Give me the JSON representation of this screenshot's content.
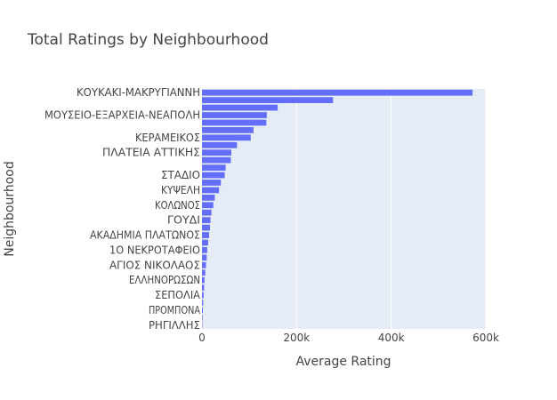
{
  "chart_data": {
    "type": "bar",
    "orientation": "horizontal",
    "title": "Total Ratings by Neighbourhood",
    "xlabel": "Average Rating",
    "ylabel": "Neighbourhood",
    "xlim": [
      0,
      600000
    ],
    "x_ticks": [
      0,
      200000,
      400000,
      600000
    ],
    "x_tick_labels": [
      "0",
      "200k",
      "400k",
      "600k"
    ],
    "grid": true,
    "bar_color": "#636efa",
    "plot_bg": "#e5ecf6",
    "categories": [
      "ΚΟΥΚΑΚΙ-ΜΑΚΡΥΓΙΑΝΝΗ",
      "",
      "",
      "ΜΟΥΣΕΙΟ-ΕΞΑΡΧΕΙΑ-ΝΕΑΠΟΛΗ",
      "",
      "",
      "ΚΕΡΑΜΕΙΚΟΣ",
      "",
      "ΠΛΑΤΕΙΑ ΑΤΤΙΚΗΣ",
      "",
      "",
      "ΣΤΑΔΙΟ",
      "",
      "ΚΥΨΕΛΗ",
      "",
      "ΚΟΛΩΝΟΣ",
      "",
      "ΓΟΥΔΙ",
      "",
      "ΑΚΑΔΗΜΙΑ ΠΛΑΤΩΝΟΣ",
      "",
      "1Ο ΝΕΚΡΟΤΑΦΕΙΟ",
      "",
      "ΑΓΙΟΣ ΝΙΚΟΛΑΟΣ",
      "",
      "ΕΛΛΗΝΟΡΩΣΩΝ",
      "",
      "ΣΕΠΟΛΙΑ",
      "",
      "ΠΡΟΜΠΟΝΑ",
      "",
      "ΡΗΓΙΛΛΗΣ"
    ],
    "values": [
      572000,
      277000,
      160000,
      137000,
      136000,
      109000,
      103000,
      74000,
      62000,
      61000,
      50000,
      48000,
      40000,
      36000,
      27000,
      24000,
      20000,
      18000,
      17000,
      15000,
      13000,
      11000,
      10000,
      8500,
      7000,
      5500,
      4500,
      3500,
      2500,
      1800,
      1200,
      800
    ]
  }
}
